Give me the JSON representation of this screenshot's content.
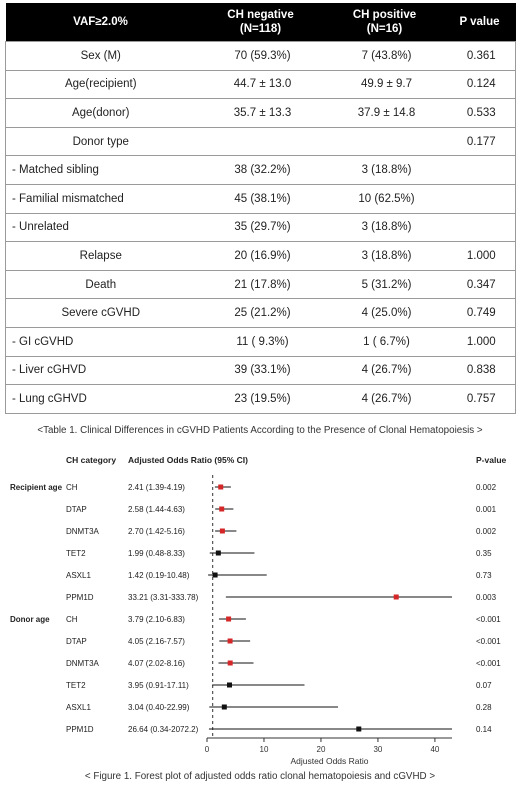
{
  "table1": {
    "headers": [
      "VAF≥2.0%",
      "CH negative\n(N=118)",
      "CH positive\n(N=16)",
      "P value"
    ],
    "rows": [
      {
        "label": "Sex (M)",
        "neg": "70 (59.3%)",
        "pos": "7 (43.8%)",
        "p": "0.361",
        "kind": "main"
      },
      {
        "label": "Age(recipient)",
        "neg": "44.7 ± 13.0",
        "pos": "49.9 ± 9.7",
        "p": "0.124",
        "kind": "main"
      },
      {
        "label": "Age(donor)",
        "neg": "35.7 ± 13.3",
        "pos": "37.9 ± 14.8",
        "p": "0.533",
        "kind": "main"
      },
      {
        "label": "Donor type",
        "neg": "",
        "pos": "",
        "p": "0.177",
        "kind": "main"
      },
      {
        "label": "- Matched sibling",
        "neg": "38 (32.2%)",
        "pos": "3 (18.8%)",
        "p": "",
        "kind": "sub"
      },
      {
        "label": "- Familial mismatched",
        "neg": "45 (38.1%)",
        "pos": "10 (62.5%)",
        "p": "",
        "kind": "sub"
      },
      {
        "label": "- Unrelated",
        "neg": "35 (29.7%)",
        "pos": "3 (18.8%)",
        "p": "",
        "kind": "sub"
      },
      {
        "label": "Relapse",
        "neg": "20 (16.9%)",
        "pos": "3 (18.8%)",
        "p": "1.000",
        "kind": "main"
      },
      {
        "label": "Death",
        "neg": "21 (17.8%)",
        "pos": "5 (31.2%)",
        "p": "0.347",
        "kind": "main"
      },
      {
        "label": "Severe cGVHD",
        "neg": "25 (21.2%)",
        "pos": "4 (25.0%)",
        "p": "0.749",
        "kind": "main"
      },
      {
        "label": "- GI cGVHD",
        "neg": "11 ( 9.3%)",
        "pos": "1 ( 6.7%)",
        "p": "1.000",
        "kind": "sub"
      },
      {
        "label": "- Liver cGHVD",
        "neg": "39 (33.1%)",
        "pos": "4 (26.7%)",
        "p": "0.838",
        "kind": "sub"
      },
      {
        "label": "- Lung cGHVD",
        "neg": "23 (19.5%)",
        "pos": "4 (26.7%)",
        "p": "0.757",
        "kind": "sub"
      }
    ]
  },
  "captions": {
    "table": "<Table 1. Clinical Differences in cGVHD Patients According to the Presence of Clonal Hematopoiesis >",
    "figure": "< Figure 1. Forest plot of adjusted odds ratio clonal hematopoiesis and cGVHD >"
  },
  "chart_data": {
    "type": "forest",
    "headers": {
      "category": "CH category",
      "or": "Adjusted Odds Ratio (95% CI)",
      "p": "P-value"
    },
    "xlabel": "Adjusted Odds Ratio",
    "xlim": [
      0,
      43
    ],
    "xticks": [
      0,
      10,
      20,
      30,
      40
    ],
    "reference_line": 1,
    "colors": {
      "significant": "#d62728",
      "not_significant": "#111111"
    },
    "groups": [
      {
        "name": "Recipient age",
        "rows": [
          {
            "category": "CH",
            "or_text": "2.41 (1.39-4.19)",
            "p": "0.002",
            "or": 2.41,
            "lo": 1.39,
            "hi": 4.19,
            "significant": true
          },
          {
            "category": "DTAP",
            "or_text": "2.58 (1.44-4.63)",
            "p": "0.001",
            "or": 2.58,
            "lo": 1.44,
            "hi": 4.63,
            "significant": true
          },
          {
            "category": "DNMT3A",
            "or_text": "2.70 (1.42-5.16)",
            "p": "0.002",
            "or": 2.7,
            "lo": 1.42,
            "hi": 5.16,
            "significant": true
          },
          {
            "category": "TET2",
            "or_text": "1.99 (0.48-8.33)",
            "p": "0.35",
            "or": 1.99,
            "lo": 0.48,
            "hi": 8.33,
            "significant": false
          },
          {
            "category": "ASXL1",
            "or_text": "1.42 (0.19-10.48)",
            "p": "0.73",
            "or": 1.42,
            "lo": 0.19,
            "hi": 10.48,
            "significant": false
          },
          {
            "category": "PPM1D",
            "or_text": "33.21 (3.31-333.78)",
            "p": "0.003",
            "or": 33.21,
            "lo": 3.31,
            "hi": 333.78,
            "significant": true
          }
        ]
      },
      {
        "name": "Donor age",
        "rows": [
          {
            "category": "CH",
            "or_text": "3.79 (2.10-6.83)",
            "p": "<0.001",
            "or": 3.79,
            "lo": 2.1,
            "hi": 6.83,
            "significant": true
          },
          {
            "category": "DTAP",
            "or_text": "4.05 (2.16-7.57)",
            "p": "<0.001",
            "or": 4.05,
            "lo": 2.16,
            "hi": 7.57,
            "significant": true
          },
          {
            "category": "DNMT3A",
            "or_text": "4.07 (2.02-8.16)",
            "p": "<0.001",
            "or": 4.07,
            "lo": 2.02,
            "hi": 8.16,
            "significant": true
          },
          {
            "category": "TET2",
            "or_text": "3.95 (0.91-17.11)",
            "p": "0.07",
            "or": 3.95,
            "lo": 0.91,
            "hi": 17.11,
            "significant": false
          },
          {
            "category": "ASXL1",
            "or_text": "3.04 (0.40-22.99)",
            "p": "0.28",
            "or": 3.04,
            "lo": 0.4,
            "hi": 22.99,
            "significant": false
          },
          {
            "category": "PPM1D",
            "or_text": "26.64 (0.34-2072.2)",
            "p": "0.14",
            "or": 26.64,
            "lo": 0.34,
            "hi": 2072.2,
            "significant": false
          }
        ]
      }
    ]
  }
}
